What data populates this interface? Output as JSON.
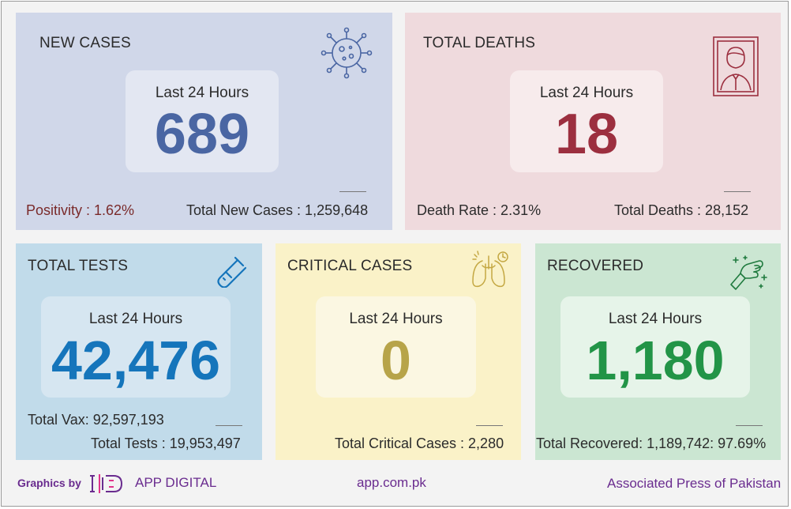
{
  "cards": {
    "new_cases": {
      "title": "NEW CASES",
      "period_label": "Last 24 Hours",
      "value": "689",
      "left_stat": "Positivity : 1.62%",
      "right_stat": "Total New Cases : 1,259,648",
      "icon": "virus-icon",
      "number_color": "#4a66a3"
    },
    "total_deaths": {
      "title": "TOTAL DEATHS",
      "period_label": "Last 24 Hours",
      "value": "18",
      "left_stat": "Death Rate : 2.31%",
      "right_stat": "Total Deaths : 28,152",
      "icon": "framed-portrait-icon",
      "number_color": "#9c2f3f"
    },
    "total_tests": {
      "title": "TOTAL TESTS",
      "period_label": "Last 24 Hours",
      "value": "42,476",
      "stat_1": "Total Vax: 92,597,193",
      "stat_2": "Total Tests : 19,953,497",
      "icon": "test-tube-icon",
      "number_color": "#1575bb"
    },
    "critical_cases": {
      "title": "CRITICAL CASES",
      "period_label": "Last 24 Hours",
      "value": "0",
      "stat": "Total Critical Cases : 2,280",
      "icon": "lungs-timer-icon",
      "number_color": "#b7a449"
    },
    "recovered": {
      "title": "RECOVERED",
      "period_label": "Last 24 Hours",
      "value": "1,180",
      "stat": "Total Recovered: 1,189,742: 97.69%",
      "icon": "fist-sparkle-icon",
      "number_color": "#229447"
    }
  },
  "footer": {
    "graphics_by": "Graphics by",
    "brand": "APP DIGITAL",
    "website": "app.com.pk",
    "agency": "Associated Press of Pakistan",
    "accent_color": "#6a2c8f"
  }
}
